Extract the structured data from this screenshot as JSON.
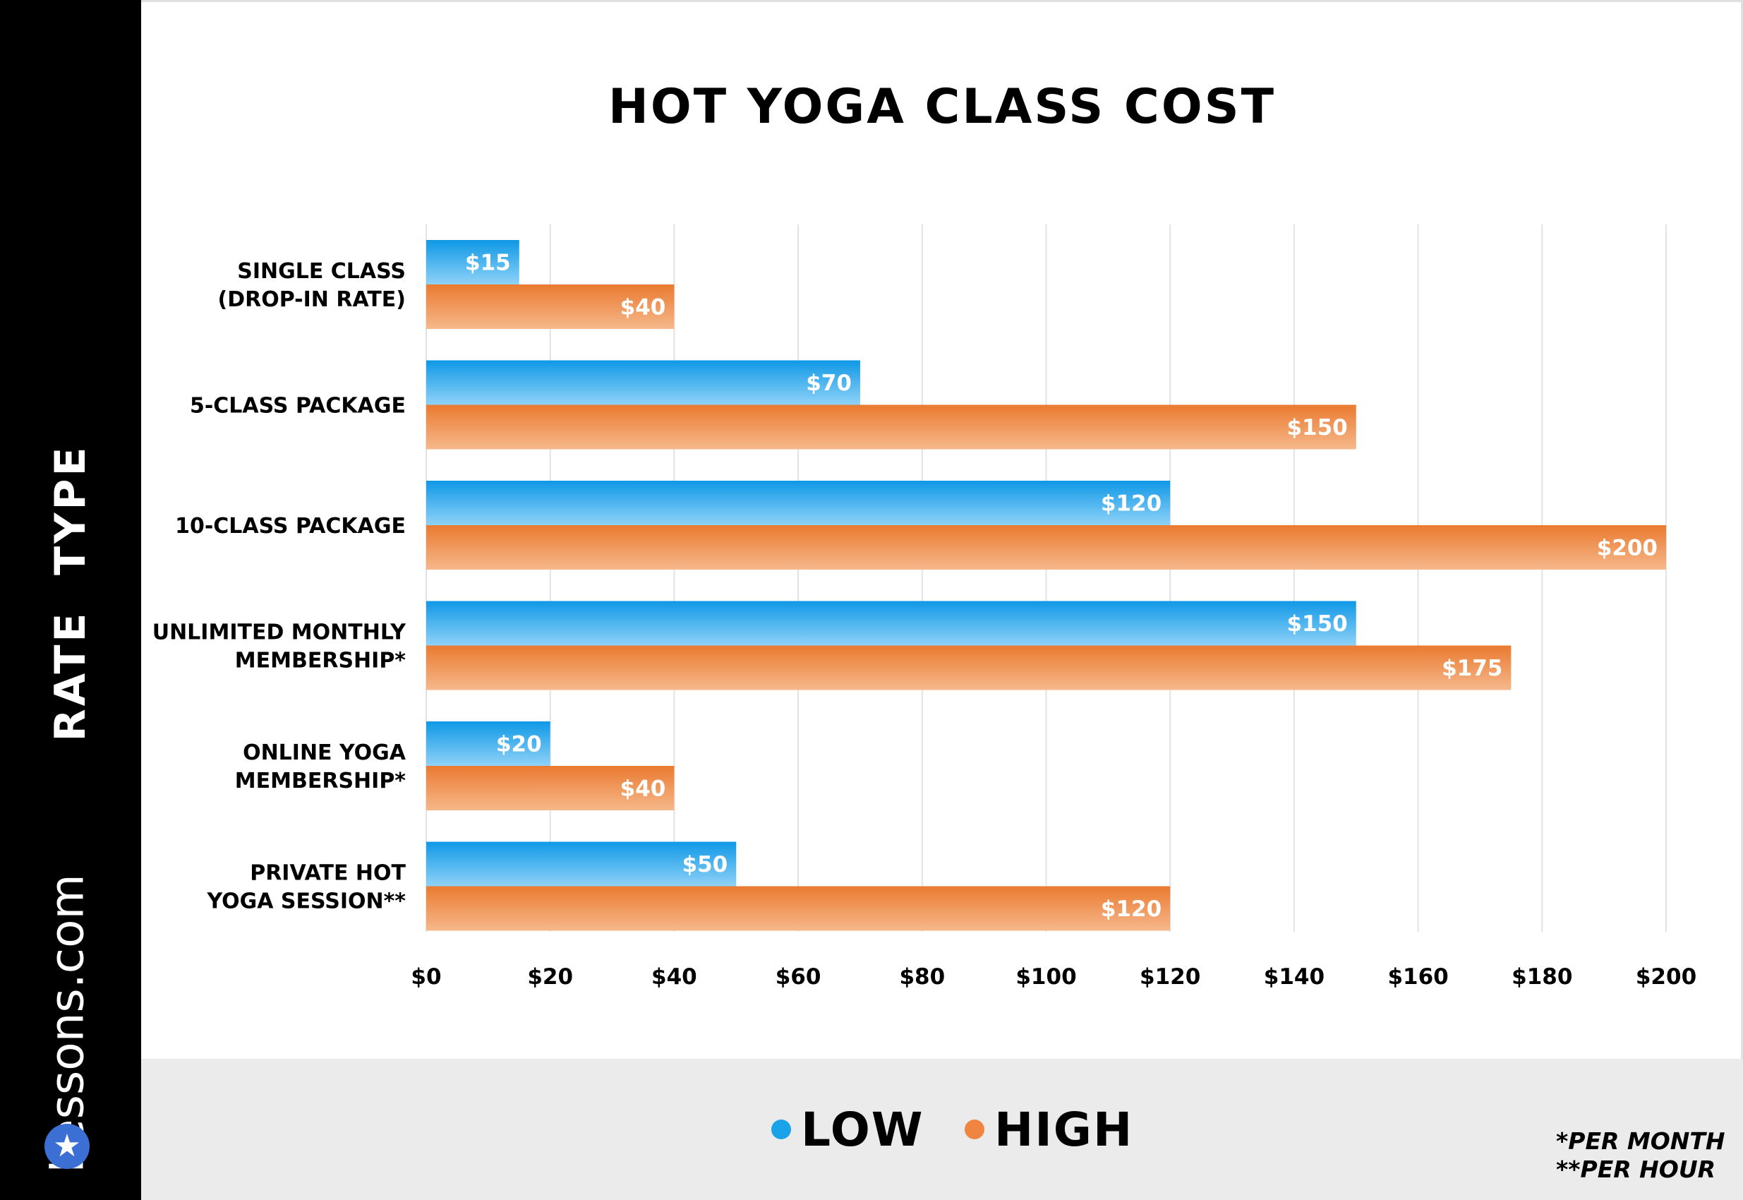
{
  "brand": {
    "name": "Lessons.com",
    "logo_icon": "star-icon"
  },
  "notes": [
    "*PER MONTH",
    "**PER HOUR"
  ],
  "colors": {
    "low": "#1aa3e8",
    "high": "#ef8540",
    "grid": "#e2e2e2"
  },
  "chart_data": {
    "type": "bar",
    "orientation": "horizontal",
    "title": "HOT YOGA CLASS COST",
    "ylabel": "RATE  TYPE",
    "xlabel": "",
    "xlim": [
      0,
      200
    ],
    "x_ticks": [
      "$0",
      "$20",
      "$40",
      "$60",
      "$80",
      "$100",
      "$120",
      "$140",
      "$160",
      "$180",
      "$200"
    ],
    "grid": "vertical",
    "legend_position": "bottom",
    "categories": [
      [
        "SINGLE CLASS",
        "(DROP-IN RATE)"
      ],
      [
        "5-CLASS PACKAGE"
      ],
      [
        "10-CLASS PACKAGE"
      ],
      [
        "UNLIMITED MONTHLY",
        "MEMBERSHIP*"
      ],
      [
        "ONLINE YOGA",
        "MEMBERSHIP*"
      ],
      [
        "PRIVATE HOT",
        "YOGA SESSION**"
      ]
    ],
    "series": [
      {
        "name": "LOW",
        "values": [
          15,
          70,
          120,
          150,
          20,
          50
        ],
        "labels": [
          "$15",
          "$70",
          "$120",
          "$150",
          "$20",
          "$50"
        ]
      },
      {
        "name": "HIGH",
        "values": [
          40,
          150,
          200,
          175,
          40,
          120
        ],
        "labels": [
          "$40",
          "$150",
          "$200",
          "$175",
          "$40",
          "$120"
        ]
      }
    ]
  }
}
